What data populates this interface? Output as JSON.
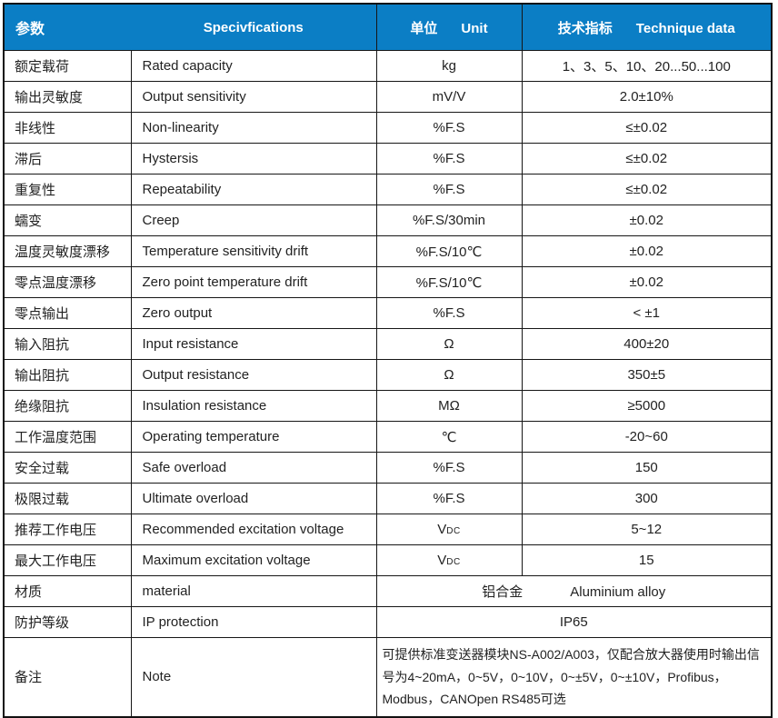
{
  "colors": {
    "header_bg": "#0b7ec5",
    "header_text": "#ffffff",
    "border": "#161616",
    "body_text": "#222222"
  },
  "header": {
    "col_param_cn": "参数",
    "col_spec_en": "Specivfications",
    "col_unit_cn": "单位",
    "col_unit_en": "Unit",
    "col_data_cn": "技术指标",
    "col_data_en": "Technique data"
  },
  "rows": [
    {
      "cn": "额定载荷",
      "en": "Rated capacity",
      "unit": "kg",
      "value": "1、3、5、10、20...50...100"
    },
    {
      "cn": "输出灵敏度",
      "en": "Output sensitivity",
      "unit": "mV/V",
      "value": "2.0±10%"
    },
    {
      "cn": "非线性",
      "en": "Non-linearity",
      "unit": "%F.S",
      "value": "≤±0.02"
    },
    {
      "cn": "滞后",
      "en": "Hystersis",
      "unit": "%F.S",
      "value": "≤±0.02"
    },
    {
      "cn": "重复性",
      "en": "Repeatability",
      "unit": "%F.S",
      "value": "≤±0.02"
    },
    {
      "cn": "蠕变",
      "en": "Creep",
      "unit": "%F.S/30min",
      "value": "±0.02"
    },
    {
      "cn": "温度灵敏度漂移",
      "en": "Temperature sensitivity drift",
      "unit": "%F.S/10℃",
      "value": "±0.02"
    },
    {
      "cn": "零点温度漂移",
      "en": "Zero point temperature drift",
      "unit": "%F.S/10℃",
      "value": "±0.02"
    },
    {
      "cn": "零点输出",
      "en": "Zero output",
      "unit": "%F.S",
      "value": "< ±1"
    },
    {
      "cn": "输入阻抗",
      "en": "Input resistance",
      "unit": "Ω",
      "value": "400±20"
    },
    {
      "cn": "输出阻抗",
      "en": "Output resistance",
      "unit": "Ω",
      "value": "350±5"
    },
    {
      "cn": "绝缘阻抗",
      "en": "Insulation resistance",
      "unit": "MΩ",
      "value": "≥5000"
    },
    {
      "cn": "工作温度范围",
      "en": "Operating temperature",
      "unit": "℃",
      "value": "-20~60"
    },
    {
      "cn": "安全过载",
      "en": "Safe overload",
      "unit": "%F.S",
      "value": "150"
    },
    {
      "cn": "极限过载",
      "en": "Ultimate overload",
      "unit": "%F.S",
      "value": "300"
    },
    {
      "cn": "推荐工作电压",
      "en": "Recommended excitation voltage",
      "unit": "V",
      "unit_sub": "DC",
      "value": "5~12"
    },
    {
      "cn": "最大工作电压",
      "en": "Maximum excitation voltage",
      "unit": "V",
      "unit_sub": "DC",
      "value": "15"
    },
    {
      "cn": "材质",
      "en": "material",
      "span": true,
      "value_cn": "铝合金",
      "value_en": "Aluminium alloy"
    },
    {
      "cn": "防护等级",
      "en": "IP protection",
      "span": true,
      "value": "IP65"
    },
    {
      "cn": "备注",
      "en": "Note",
      "span": true,
      "note": true,
      "value": "可提供标准变送器模块NS-A002/A003，仅配合放大器使用时输出信号为4~20mA，0~5V，0~10V，0~±5V，0~±10V，Profibus，Modbus，CANOpen RS485可选"
    }
  ]
}
